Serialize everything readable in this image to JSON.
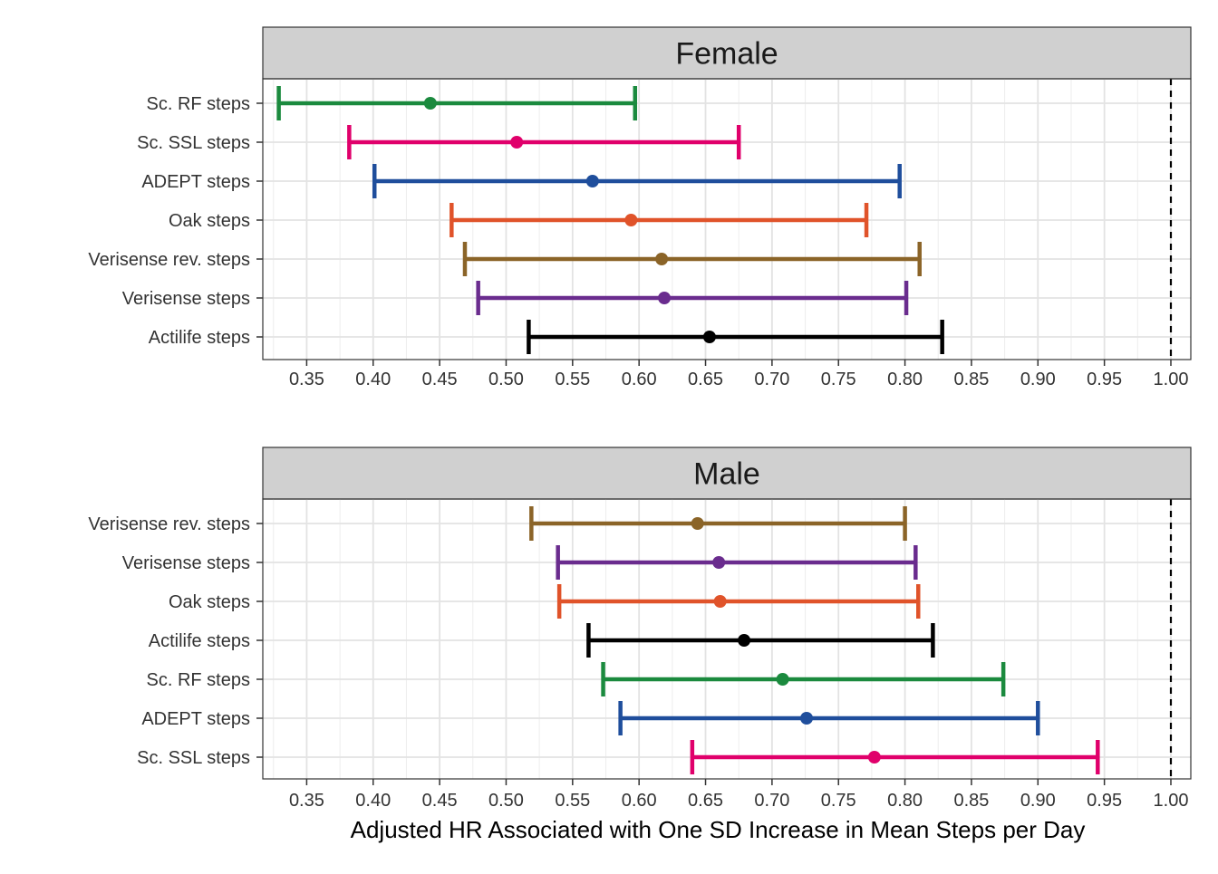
{
  "chart_data": {
    "type": "forest",
    "xlabel": "Adjusted HR Associated with One SD Increase in Mean Steps per Day",
    "x_ticks": [
      "0.35",
      "0.40",
      "0.45",
      "0.50",
      "0.55",
      "0.60",
      "0.65",
      "0.70",
      "0.75",
      "0.80",
      "0.85",
      "0.90",
      "0.95",
      "1.00"
    ],
    "xlim": [
      0.317,
      1.015
    ],
    "reference_line": 1.0,
    "grid": true,
    "panels": [
      {
        "title": "Female",
        "rows": [
          {
            "label": "Sc. RF steps",
            "estimate": 0.443,
            "lower": 0.329,
            "upper": 0.597,
            "color": "#1b8a3e"
          },
          {
            "label": "Sc. SSL steps",
            "estimate": 0.508,
            "lower": 0.382,
            "upper": 0.675,
            "color": "#e0006b"
          },
          {
            "label": "ADEPT steps",
            "estimate": 0.565,
            "lower": 0.401,
            "upper": 0.796,
            "color": "#1f4e9c"
          },
          {
            "label": "Oak steps",
            "estimate": 0.594,
            "lower": 0.459,
            "upper": 0.771,
            "color": "#e0532a"
          },
          {
            "label": "Verisense rev. steps",
            "estimate": 0.617,
            "lower": 0.469,
            "upper": 0.811,
            "color": "#8b6428"
          },
          {
            "label": "Verisense steps",
            "estimate": 0.619,
            "lower": 0.479,
            "upper": 0.801,
            "color": "#6a2c8e"
          },
          {
            "label": "Actilife steps",
            "estimate": 0.653,
            "lower": 0.517,
            "upper": 0.828,
            "color": "#000000"
          }
        ]
      },
      {
        "title": "Male",
        "rows": [
          {
            "label": "Verisense rev. steps",
            "estimate": 0.644,
            "lower": 0.519,
            "upper": 0.8,
            "color": "#8b6428"
          },
          {
            "label": "Verisense steps",
            "estimate": 0.66,
            "lower": 0.539,
            "upper": 0.808,
            "color": "#6a2c8e"
          },
          {
            "label": "Oak steps",
            "estimate": 0.661,
            "lower": 0.54,
            "upper": 0.81,
            "color": "#e0532a"
          },
          {
            "label": "Actilife steps",
            "estimate": 0.679,
            "lower": 0.562,
            "upper": 0.821,
            "color": "#000000"
          },
          {
            "label": "Sc. RF steps",
            "estimate": 0.708,
            "lower": 0.573,
            "upper": 0.874,
            "color": "#1b8a3e"
          },
          {
            "label": "ADEPT steps",
            "estimate": 0.726,
            "lower": 0.586,
            "upper": 0.9,
            "color": "#1f4e9c"
          },
          {
            "label": "Sc. SSL steps",
            "estimate": 0.777,
            "lower": 0.64,
            "upper": 0.945,
            "color": "#e0006b"
          }
        ]
      }
    ]
  }
}
